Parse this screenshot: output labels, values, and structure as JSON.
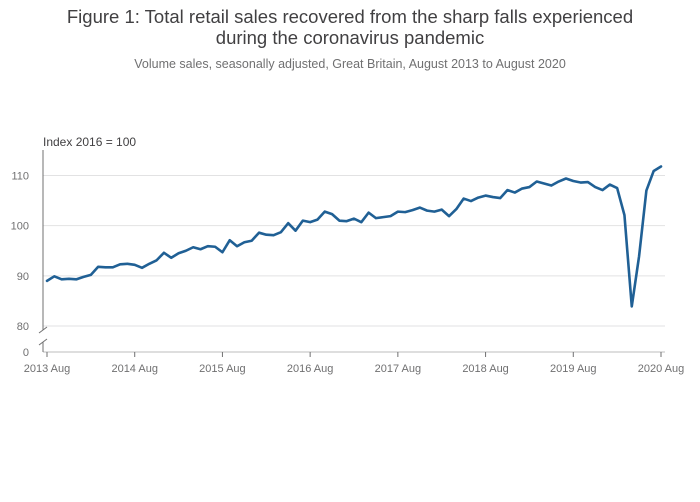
{
  "chart_data": {
    "type": "line",
    "title_lines": [
      "Figure 1: Total retail sales recovered from the sharp falls experienced",
      "during the coronavirus pandemic"
    ],
    "subtitle": "Volume sales, seasonally adjusted, Great Britain, August 2013 to August 2020",
    "y_unit_label": "Index 2016 = 100",
    "ylim": [
      80,
      113
    ],
    "y_ticks": [
      "0",
      "80",
      "90",
      "100",
      "110"
    ],
    "x_ticks": [
      "2013 Aug",
      "2014 Aug",
      "2015 Aug",
      "2016 Aug",
      "2017 Aug",
      "2018 Aug",
      "2019 Aug",
      "2020 Aug"
    ],
    "axis_break": true,
    "grid": true,
    "line_color": "#206095",
    "series": [
      {
        "x": [
          "2013 Aug",
          "2013 Sep",
          "2013 Oct",
          "2013 Nov",
          "2013 Dec",
          "2014 Jan",
          "2014 Feb",
          "2014 Mar",
          "2014 Apr",
          "2014 May",
          "2014 Jun",
          "2014 Jul",
          "2014 Aug",
          "2014 Sep",
          "2014 Oct",
          "2014 Nov",
          "2014 Dec",
          "2015 Jan",
          "2015 Feb",
          "2015 Mar",
          "2015 Apr",
          "2015 May",
          "2015 Jun",
          "2015 Jul",
          "2015 Aug",
          "2015 Sep",
          "2015 Oct",
          "2015 Nov",
          "2015 Dec",
          "2016 Jan",
          "2016 Feb",
          "2016 Mar",
          "2016 Apr",
          "2016 May",
          "2016 Jun",
          "2016 Jul",
          "2016 Aug",
          "2016 Sep",
          "2016 Oct",
          "2016 Nov",
          "2016 Dec",
          "2017 Jan",
          "2017 Feb",
          "2017 Mar",
          "2017 Apr",
          "2017 May",
          "2017 Jun",
          "2017 Jul",
          "2017 Aug",
          "2017 Sep",
          "2017 Oct",
          "2017 Nov",
          "2017 Dec",
          "2018 Jan",
          "2018 Feb",
          "2018 Mar",
          "2018 Apr",
          "2018 May",
          "2018 Jun",
          "2018 Jul",
          "2018 Aug",
          "2018 Sep",
          "2018 Oct",
          "2018 Nov",
          "2018 Dec",
          "2019 Jan",
          "2019 Feb",
          "2019 Mar",
          "2019 Apr",
          "2019 May",
          "2019 Jun",
          "2019 Jul",
          "2019 Aug",
          "2019 Sep",
          "2019 Oct",
          "2019 Nov",
          "2019 Dec",
          "2020 Jan",
          "2020 Feb",
          "2020 Mar",
          "2020 Apr",
          "2020 May",
          "2020 Jun",
          "2020 Jul",
          "2020 Aug"
        ],
        "values": [
          89.0,
          89.9,
          89.3,
          89.4,
          89.3,
          89.8,
          90.2,
          91.8,
          91.7,
          91.7,
          92.3,
          92.4,
          92.2,
          91.6,
          92.4,
          93.1,
          94.6,
          93.6,
          94.5,
          95.0,
          95.7,
          95.3,
          95.9,
          95.8,
          94.7,
          97.1,
          95.9,
          96.7,
          97.0,
          98.6,
          98.2,
          98.1,
          98.7,
          100.5,
          99.0,
          101.0,
          100.7,
          101.2,
          102.8,
          102.3,
          101.0,
          100.9,
          101.4,
          100.7,
          102.6,
          101.5,
          101.7,
          101.9,
          102.8,
          102.7,
          103.1,
          103.6,
          103.0,
          102.8,
          103.2,
          101.9,
          103.3,
          105.4,
          104.9,
          105.6,
          106.0,
          105.7,
          105.5,
          107.1,
          106.6,
          107.4,
          107.7,
          108.8,
          108.4,
          108.0,
          108.8,
          109.4,
          108.9,
          108.6,
          108.7,
          107.7,
          107.1,
          108.2,
          107.5,
          102.1,
          83.9,
          93.9,
          107.0,
          110.9,
          111.8
        ]
      }
    ]
  }
}
